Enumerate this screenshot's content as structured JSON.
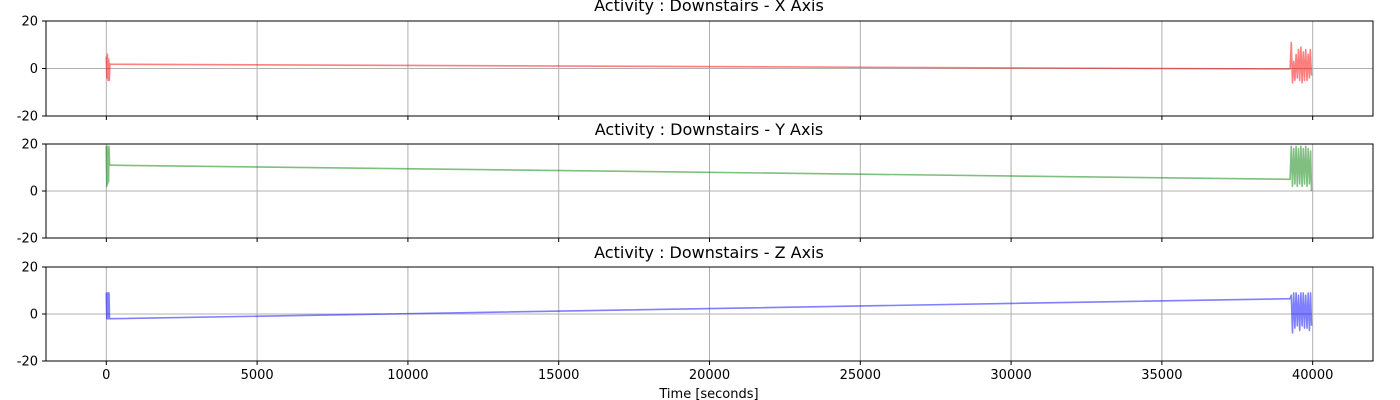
{
  "chart_data": [
    {
      "type": "line",
      "title": "Activity : Downstairs - X Axis",
      "xlabel": "",
      "ylabel": "",
      "xlim": [
        -2000,
        42000
      ],
      "ylim": [
        -20,
        20
      ],
      "xticks": [
        0,
        5000,
        10000,
        15000,
        20000,
        25000,
        30000,
        35000,
        40000
      ],
      "yticks": [
        -20,
        0,
        20
      ],
      "grid": true,
      "color": "#ff0000",
      "series": [
        {
          "name": "",
          "points": [
            [
              0,
              5
            ],
            [
              20,
              -4
            ],
            [
              40,
              6
            ],
            [
              60,
              -5
            ],
            [
              80,
              4
            ],
            [
              100,
              -5
            ],
            [
              120,
              2
            ],
            [
              150,
              1.8
            ],
            [
              39250,
              -0.2
            ],
            [
              39290,
              11
            ],
            [
              39330,
              -6
            ],
            [
              39370,
              3
            ],
            [
              39410,
              -5
            ],
            [
              39450,
              6
            ],
            [
              39490,
              -4
            ],
            [
              39530,
              8
            ],
            [
              39570,
              -5
            ],
            [
              39610,
              9
            ],
            [
              39650,
              -6
            ],
            [
              39690,
              7
            ],
            [
              39730,
              -5
            ],
            [
              39770,
              8
            ],
            [
              39810,
              -5
            ],
            [
              39850,
              6
            ],
            [
              39890,
              -4
            ],
            [
              39920,
              8
            ],
            [
              39960,
              -3
            ]
          ]
        }
      ]
    },
    {
      "type": "line",
      "title": "Activity : Downstairs - Y Axis",
      "xlabel": "",
      "ylabel": "",
      "xlim": [
        -2000,
        42000
      ],
      "ylim": [
        -20,
        20
      ],
      "xticks": [
        0,
        5000,
        10000,
        15000,
        20000,
        25000,
        30000,
        35000,
        40000
      ],
      "yticks": [
        -20,
        0,
        20
      ],
      "grid": true,
      "color": "#008000",
      "series": [
        {
          "name": "",
          "points": [
            [
              0,
              19
            ],
            [
              15,
              2
            ],
            [
              30,
              19
            ],
            [
              45,
              3
            ],
            [
              60,
              18
            ],
            [
              75,
              4
            ],
            [
              90,
              19
            ],
            [
              110,
              11
            ],
            [
              150,
              11
            ],
            [
              39250,
              5
            ],
            [
              39290,
              19
            ],
            [
              39330,
              2
            ],
            [
              39370,
              18
            ],
            [
              39410,
              3
            ],
            [
              39450,
              19
            ],
            [
              39490,
              2
            ],
            [
              39530,
              18
            ],
            [
              39570,
              3
            ],
            [
              39610,
              19
            ],
            [
              39650,
              2
            ],
            [
              39690,
              18
            ],
            [
              39730,
              3
            ],
            [
              39770,
              19
            ],
            [
              39810,
              2
            ],
            [
              39850,
              18
            ],
            [
              39890,
              3
            ],
            [
              39930,
              17
            ],
            [
              39960,
              0
            ]
          ]
        }
      ]
    },
    {
      "type": "line",
      "title": "Activity : Downstairs - Z Axis",
      "xlabel": "Time [seconds]",
      "ylabel": "",
      "xlim": [
        -2000,
        42000
      ],
      "ylim": [
        -20,
        20
      ],
      "xticks": [
        0,
        5000,
        10000,
        15000,
        20000,
        25000,
        30000,
        35000,
        40000
      ],
      "yticks": [
        -20,
        0,
        20
      ],
      "grid": true,
      "color": "#0000ff",
      "series": [
        {
          "name": "",
          "points": [
            [
              0,
              9
            ],
            [
              15,
              -2
            ],
            [
              30,
              9
            ],
            [
              45,
              -2
            ],
            [
              60,
              9
            ],
            [
              75,
              -2
            ],
            [
              90,
              9
            ],
            [
              105,
              -2
            ],
            [
              150,
              -2
            ],
            [
              39250,
              6.5
            ],
            [
              39290,
              8
            ],
            [
              39330,
              -8
            ],
            [
              39370,
              9
            ],
            [
              39410,
              -6
            ],
            [
              39450,
              9
            ],
            [
              39490,
              -5
            ],
            [
              39530,
              8
            ],
            [
              39570,
              -7
            ],
            [
              39610,
              9
            ],
            [
              39650,
              -5
            ],
            [
              39690,
              9
            ],
            [
              39730,
              -6
            ],
            [
              39770,
              8
            ],
            [
              39810,
              -6
            ],
            [
              39850,
              9
            ],
            [
              39890,
              -7
            ],
            [
              39930,
              9
            ],
            [
              39960,
              -5
            ]
          ]
        }
      ]
    }
  ]
}
